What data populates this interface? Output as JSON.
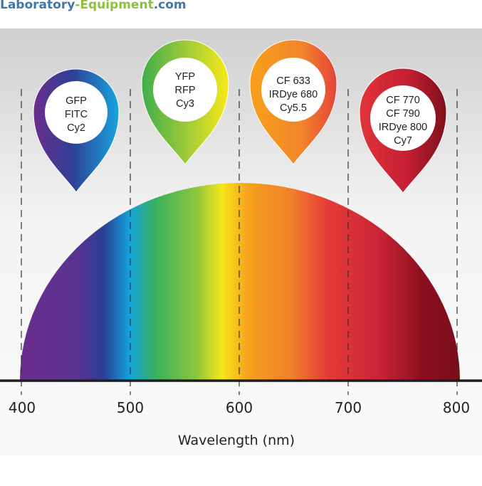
{
  "brand": {
    "part1": "Laboratory",
    "part2": "-Equipment",
    "part3": ".com"
  },
  "axis": {
    "title": "Wavelength (nm)",
    "ticks": [
      "400",
      "500",
      "600",
      "700",
      "800"
    ]
  },
  "markers": [
    {
      "lines": [
        "GFP",
        "FITC",
        "Cy2"
      ]
    },
    {
      "lines": [
        "YFP",
        "RFP",
        "Cy3"
      ]
    },
    {
      "lines": [
        "CF 633",
        "IRDye 680",
        "Cy5.5"
      ]
    },
    {
      "lines": [
        "CF 770",
        "CF 790",
        "IRDye 800",
        "Cy7"
      ]
    }
  ],
  "colors": {
    "violet": "#6a2c91",
    "blue": "#1e9ad6",
    "green": "#5ab946",
    "yellow": "#f2e51a",
    "orange": "#f39020",
    "red": "#e2343a",
    "darkred": "#7e0f1c"
  }
}
